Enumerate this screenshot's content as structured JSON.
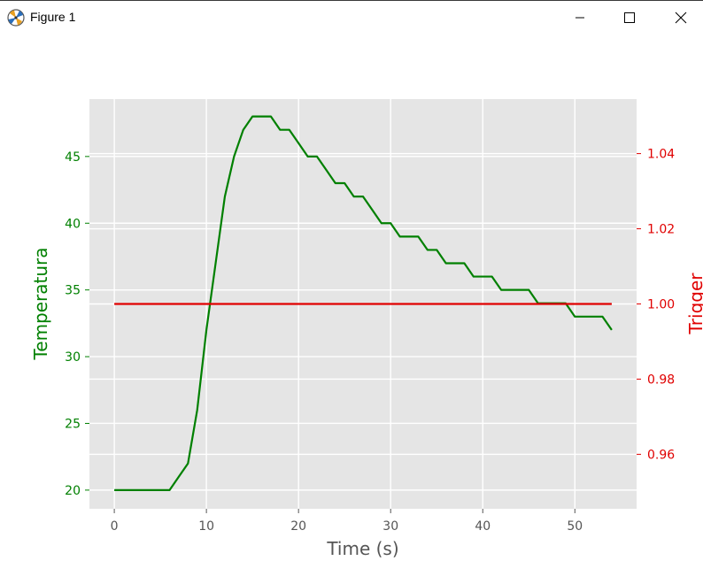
{
  "window": {
    "title": "Figure 1",
    "icon": "matplotlib-logo-icon",
    "controls": [
      "minimize-icon",
      "maximize-icon",
      "close-icon"
    ]
  },
  "colors": {
    "temperature": "#008000",
    "trigger": "#e00000",
    "plot_bg": "#e5e5e5",
    "grid": "#ffffff",
    "axis_text": "#555555"
  },
  "chart_data": {
    "type": "line",
    "title": "",
    "xlabel": "Time (s)",
    "ylabel_left": "Temperatura",
    "ylabel_right": "Trigger",
    "xlim": [
      -2.7,
      56.7
    ],
    "ylim_left": [
      18.6,
      49.3
    ],
    "ylim_right": [
      0.9455,
      1.0545
    ],
    "xticks": [
      0,
      10,
      20,
      30,
      40,
      50
    ],
    "yticks_left": [
      20,
      25,
      30,
      35,
      40,
      45
    ],
    "yticks_right": [
      0.96,
      0.98,
      1.0,
      1.02,
      1.04
    ],
    "yticks_right_labels": [
      "0.96",
      "0.98",
      "1.00",
      "1.02",
      "1.04"
    ],
    "grid": true,
    "series": [
      {
        "axis": "left",
        "color": "#008000",
        "x": [
          0,
          1,
          2,
          3,
          4,
          5,
          6,
          7,
          8,
          9,
          10,
          11,
          12,
          13,
          14,
          15,
          16,
          17,
          18,
          19,
          20,
          21,
          22,
          23,
          24,
          25,
          26,
          27,
          28,
          29,
          30,
          31,
          32,
          33,
          34,
          35,
          36,
          37,
          38,
          39,
          40,
          41,
          42,
          43,
          44,
          45,
          46,
          47,
          48,
          49,
          50,
          51,
          52,
          53,
          54
        ],
        "y": [
          20,
          20,
          20,
          20,
          20,
          20,
          20,
          21,
          22,
          26,
          32,
          37,
          42,
          45,
          47,
          48,
          48,
          48,
          47,
          47,
          46,
          45,
          45,
          44,
          43,
          43,
          42,
          42,
          41,
          40,
          40,
          39,
          39,
          39,
          38,
          38,
          37,
          37,
          37,
          36,
          36,
          36,
          35,
          35,
          35,
          35,
          34,
          34,
          34,
          34,
          33,
          33,
          33,
          33,
          32
        ]
      },
      {
        "axis": "right",
        "color": "#e00000",
        "x": [
          0,
          54
        ],
        "y": [
          1.0,
          1.0
        ]
      }
    ]
  }
}
